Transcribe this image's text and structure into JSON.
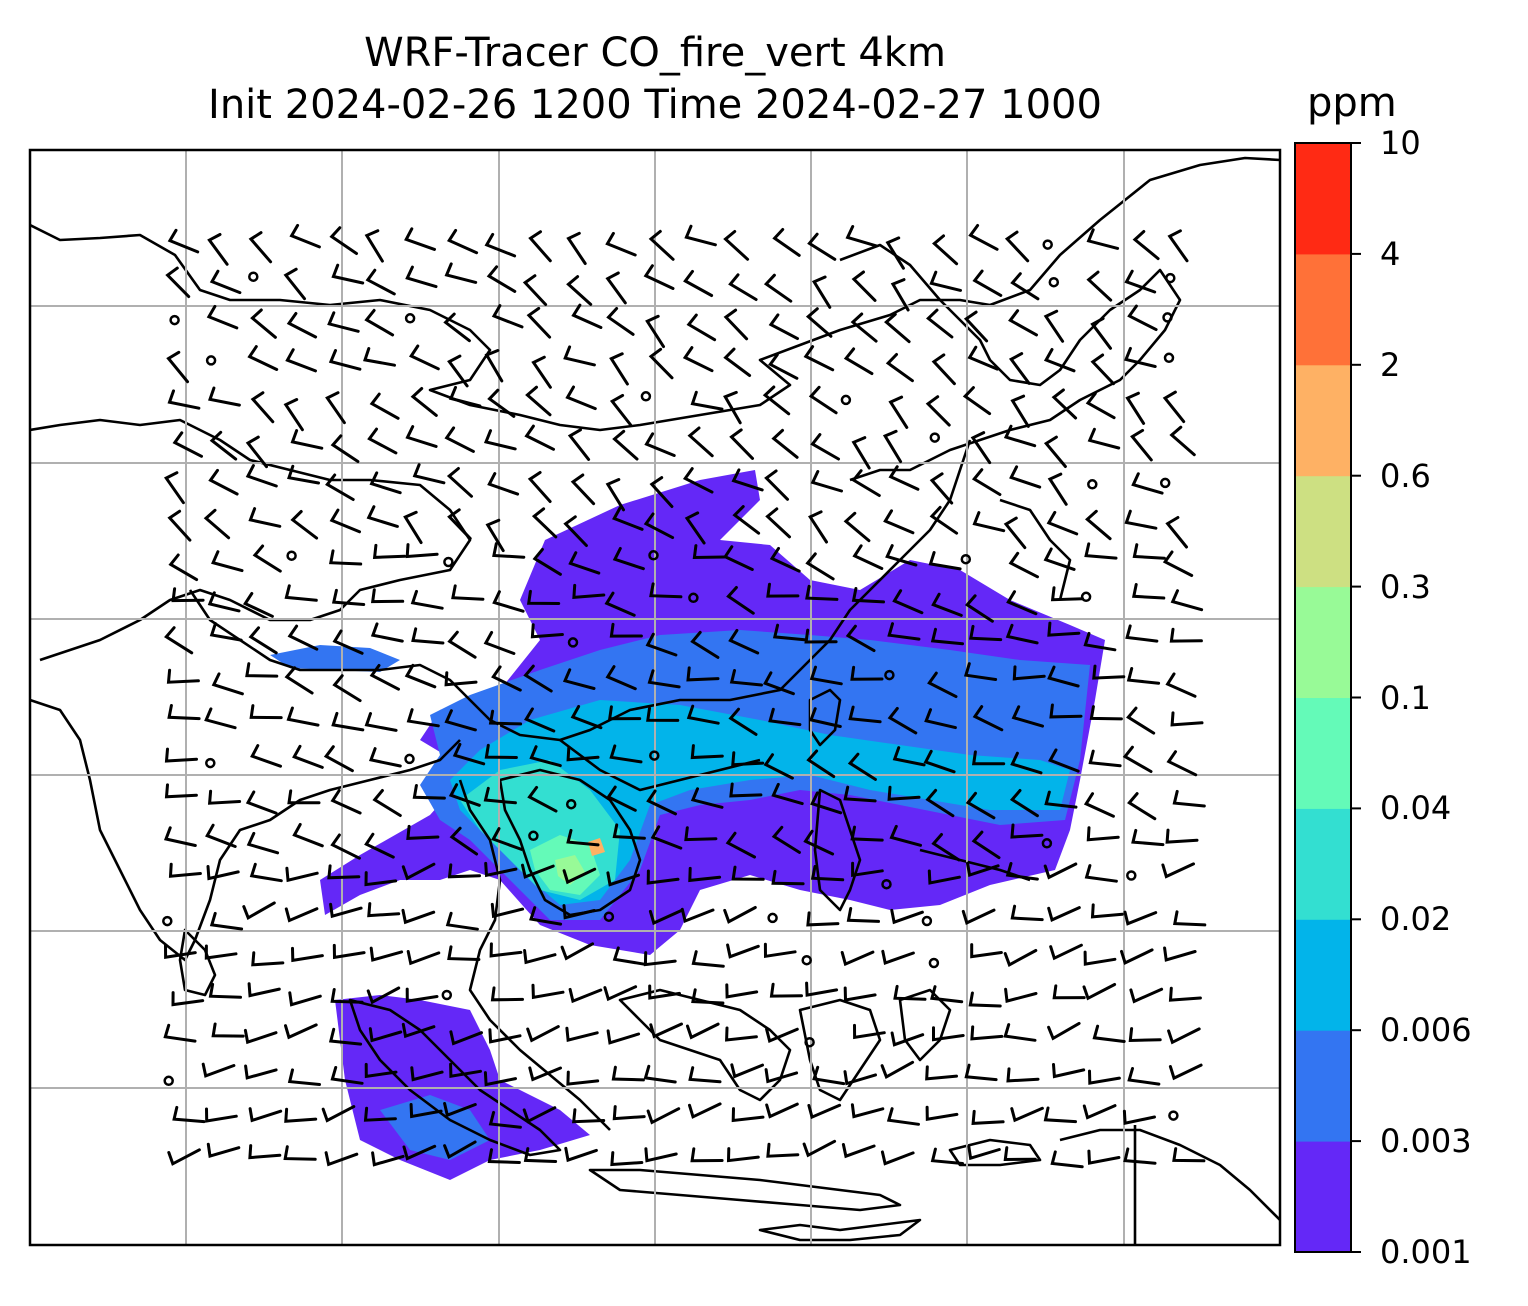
{
  "title_line1": "WRF-Tracer CO_fire_vert 4km",
  "title_line2": "Init 2024-02-26 1200 Time 2024-02-27 1000",
  "colorbar": {
    "unit": "ppm",
    "levels": [
      "0.001",
      "0.003",
      "0.006",
      "0.02",
      "0.04",
      "0.1",
      "0.3",
      "0.6",
      "2",
      "4",
      "10"
    ],
    "colors": [
      "#6428f7",
      "#3375f2",
      "#02b4ea",
      "#33dfd1",
      "#64fab8",
      "#98fa97",
      "#cde082",
      "#feb164",
      "#ff7138",
      "#ff2a14"
    ]
  },
  "map": {
    "background": "#ffffff",
    "gridline_color": "#b0b0b0",
    "coastline_color": "#000000",
    "wind_barb_color": "#000000"
  }
}
